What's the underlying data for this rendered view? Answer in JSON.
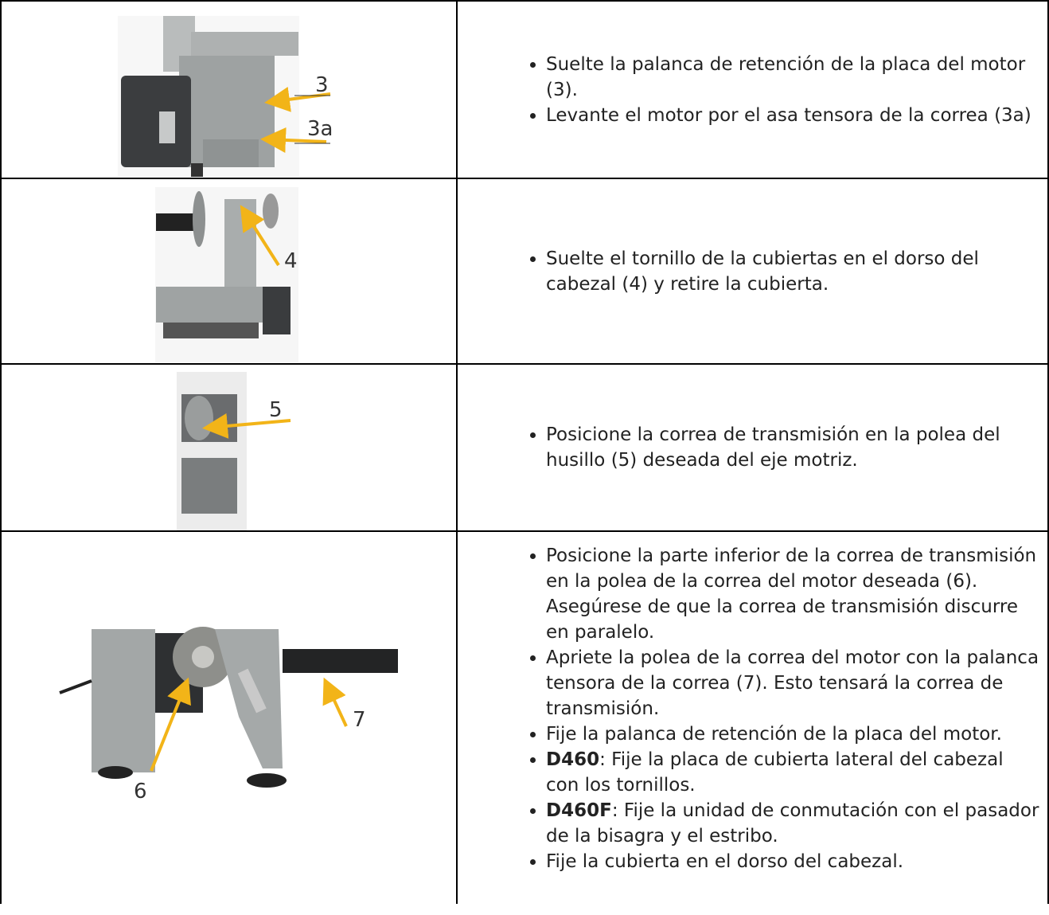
{
  "rows": [
    {
      "image": {
        "callouts": [
          "3",
          "3a"
        ]
      },
      "bullets": [
        {
          "text": "Suelte la palanca de retención de la placa del motor (3)."
        },
        {
          "text": "Levante el motor por el asa tensora de la correa (3a)"
        }
      ]
    },
    {
      "image": {
        "callouts": [
          "4"
        ]
      },
      "bullets": [
        {
          "text": "Suelte el tornillo de la cubiertas en el dorso del cabezal (4) y retire la cubierta."
        }
      ]
    },
    {
      "image": {
        "callouts": [
          "5"
        ]
      },
      "bullets": [
        {
          "text": "Posicione la correa de transmisión en la polea del husillo (5) deseada del eje motriz."
        }
      ]
    },
    {
      "image": {
        "callouts": [
          "6",
          "7"
        ]
      },
      "bullets": [
        {
          "text": "Posicione la parte inferior de la correa de transmisión en la polea de la correa del motor deseada (6). Asegúrese de que la correa de transmisión discurre en paralelo."
        },
        {
          "text": "Apriete la polea de la correa del motor con la palanca tensora de la correa (7). Esto tensará la correa de transmisión."
        },
        {
          "text": "Fije la palanca de retención de la placa del motor."
        },
        {
          "bold": "D460",
          "text": ": Fije la placa de cubierta lateral del cabezal con los tornillos."
        },
        {
          "bold": "D460F",
          "text": ": Fije la unidad de conmutación con el pasador de la bisagra y el estribo."
        },
        {
          "text": "Fije la cubierta en el dorso del cabezal."
        }
      ]
    }
  ]
}
